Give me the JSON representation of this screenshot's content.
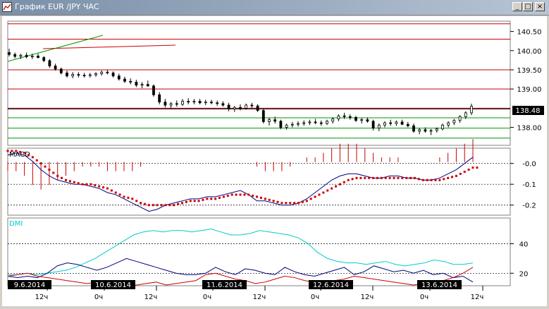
{
  "window": {
    "title": "График EUR /JPY ЧАС",
    "buttons": {
      "minimize": "_",
      "restore": "□",
      "close": "×"
    }
  },
  "chart_data": [
    {
      "type": "candlestick",
      "title": "",
      "price_axis_labels": [
        "140.50",
        "140.00",
        "139.50",
        "139.00",
        "138.00"
      ],
      "current_price_label": "138.48",
      "ylim": [
        137.55,
        140.75
      ],
      "ohlc": [
        [
          139.95,
          140.05,
          139.85,
          139.9
        ],
        [
          139.9,
          139.95,
          139.8,
          139.85
        ],
        [
          139.85,
          139.92,
          139.78,
          139.88
        ],
        [
          139.88,
          139.95,
          139.8,
          139.84
        ],
        [
          139.84,
          139.92,
          139.78,
          139.86
        ],
        [
          139.86,
          139.92,
          139.8,
          139.82
        ],
        [
          139.82,
          139.86,
          139.7,
          139.74
        ],
        [
          139.74,
          139.78,
          139.55,
          139.6
        ],
        [
          139.6,
          139.66,
          139.48,
          139.52
        ],
        [
          139.52,
          139.56,
          139.38,
          139.42
        ],
        [
          139.42,
          139.48,
          139.3,
          139.34
        ],
        [
          139.34,
          139.44,
          139.28,
          139.38
        ],
        [
          139.38,
          139.44,
          139.3,
          139.36
        ],
        [
          139.36,
          139.42,
          139.3,
          139.35
        ],
        [
          139.35,
          139.42,
          139.3,
          139.37
        ],
        [
          139.37,
          139.44,
          139.32,
          139.4
        ],
        [
          139.4,
          139.48,
          139.35,
          139.44
        ],
        [
          139.44,
          139.5,
          139.38,
          139.42
        ],
        [
          139.42,
          139.46,
          139.3,
          139.34
        ],
        [
          139.34,
          139.4,
          139.22,
          139.26
        ],
        [
          139.26,
          139.32,
          139.16,
          139.2
        ],
        [
          139.2,
          139.28,
          139.12,
          139.18
        ],
        [
          139.18,
          139.24,
          139.05,
          139.1
        ],
        [
          139.1,
          139.18,
          139.02,
          139.12
        ],
        [
          139.12,
          139.22,
          139.06,
          139.08
        ],
        [
          139.08,
          139.12,
          138.8,
          138.85
        ],
        [
          138.85,
          138.92,
          138.6,
          138.66
        ],
        [
          138.66,
          138.74,
          138.52,
          138.58
        ],
        [
          138.58,
          138.66,
          138.5,
          138.62
        ],
        [
          138.62,
          138.7,
          138.54,
          138.6
        ],
        [
          138.6,
          138.74,
          138.56,
          138.68
        ],
        [
          138.68,
          138.76,
          138.6,
          138.66
        ],
        [
          138.66,
          138.74,
          138.6,
          138.68
        ],
        [
          138.68,
          138.74,
          138.6,
          138.64
        ],
        [
          138.64,
          138.72,
          138.58,
          138.66
        ],
        [
          138.66,
          138.72,
          138.6,
          138.64
        ],
        [
          138.64,
          138.7,
          138.56,
          138.62
        ],
        [
          138.62,
          138.68,
          138.54,
          138.58
        ],
        [
          138.58,
          138.64,
          138.42,
          138.48
        ],
        [
          138.48,
          138.56,
          138.4,
          138.52
        ],
        [
          138.52,
          138.6,
          138.44,
          138.5
        ],
        [
          138.5,
          138.62,
          138.46,
          138.58
        ],
        [
          138.58,
          138.64,
          138.5,
          138.56
        ],
        [
          138.56,
          138.6,
          138.4,
          138.44
        ],
        [
          138.44,
          138.48,
          138.1,
          138.15
        ],
        [
          138.15,
          138.25,
          138.05,
          138.2
        ],
        [
          138.2,
          138.28,
          138.1,
          138.16
        ],
        [
          138.16,
          138.2,
          137.95,
          138.0
        ],
        [
          138.0,
          138.1,
          137.94,
          138.06
        ],
        [
          138.06,
          138.14,
          138.0,
          138.08
        ],
        [
          138.08,
          138.16,
          138.02,
          138.1
        ],
        [
          138.1,
          138.18,
          138.04,
          138.12
        ],
        [
          138.12,
          138.2,
          138.06,
          138.14
        ],
        [
          138.14,
          138.22,
          138.08,
          138.12
        ],
        [
          138.12,
          138.18,
          138.04,
          138.1
        ],
        [
          138.1,
          138.2,
          138.06,
          138.16
        ],
        [
          138.16,
          138.26,
          138.1,
          138.22
        ],
        [
          138.22,
          138.34,
          138.16,
          138.3
        ],
        [
          138.3,
          138.38,
          138.22,
          138.28
        ],
        [
          138.28,
          138.34,
          138.2,
          138.26
        ],
        [
          138.26,
          138.3,
          138.14,
          138.18
        ],
        [
          138.18,
          138.24,
          138.1,
          138.2
        ],
        [
          138.2,
          138.26,
          138.12,
          138.16
        ],
        [
          138.16,
          138.2,
          137.92,
          137.98
        ],
        [
          137.98,
          138.1,
          137.9,
          138.06
        ],
        [
          138.06,
          138.16,
          138.0,
          138.12
        ],
        [
          138.12,
          138.2,
          138.04,
          138.1
        ],
        [
          138.1,
          138.18,
          138.04,
          138.14
        ],
        [
          138.14,
          138.2,
          138.06,
          138.08
        ],
        [
          138.08,
          138.14,
          138.0,
          138.04
        ],
        [
          138.04,
          138.1,
          137.86,
          137.9
        ],
        [
          137.9,
          137.98,
          137.82,
          137.94
        ],
        [
          137.94,
          138.0,
          137.86,
          137.9
        ],
        [
          137.9,
          137.96,
          137.8,
          137.92
        ],
        [
          137.92,
          138.0,
          137.86,
          137.96
        ],
        [
          137.96,
          138.1,
          137.92,
          138.06
        ],
        [
          138.06,
          138.16,
          138.0,
          138.12
        ],
        [
          138.12,
          138.22,
          138.06,
          138.18
        ],
        [
          138.18,
          138.32,
          138.12,
          138.28
        ],
        [
          138.28,
          138.42,
          138.22,
          138.38
        ],
        [
          138.38,
          138.62,
          138.32,
          138.55
        ]
      ],
      "horizontal_levels": [
        {
          "value": 140.7,
          "color": "#cc0000"
        },
        {
          "value": 140.3,
          "color": "#cc0000"
        },
        {
          "value": 139.5,
          "color": "#cc0000"
        },
        {
          "value": 139.0,
          "color": "#cc0000"
        },
        {
          "value": 138.5,
          "color": "#cc0000"
        },
        {
          "value": 138.48,
          "color": "#000000"
        },
        {
          "value": 138.25,
          "color": "#009900"
        },
        {
          "value": 137.98,
          "color": "#009900"
        },
        {
          "value": 137.72,
          "color": "#009900"
        }
      ]
    },
    {
      "type": "line",
      "title": "MACD",
      "axis_labels": [
        "-0.0",
        "-0.1",
        "-0.2"
      ],
      "ylim": [
        -0.245,
        0.07
      ],
      "series": [
        {
          "name": "",
          "color": "#000080",
          "style": "line",
          "values": [
            0.04,
            0.05,
            0.04,
            0.01,
            -0.03,
            -0.06,
            -0.08,
            -0.09,
            -0.1,
            -0.1,
            -0.11,
            -0.12,
            -0.14,
            -0.15,
            -0.17,
            -0.19,
            -0.21,
            -0.23,
            -0.22,
            -0.2,
            -0.19,
            -0.18,
            -0.17,
            -0.17,
            -0.16,
            -0.16,
            -0.15,
            -0.14,
            -0.13,
            -0.15,
            -0.18,
            -0.18,
            -0.19,
            -0.2,
            -0.2,
            -0.19,
            -0.17,
            -0.14,
            -0.11,
            -0.08,
            -0.06,
            -0.05,
            -0.05,
            -0.06,
            -0.07,
            -0.07,
            -0.06,
            -0.06,
            -0.07,
            -0.07,
            -0.08,
            -0.08,
            -0.07,
            -0.05,
            -0.03,
            0.0,
            0.03
          ]
        },
        {
          "name": "",
          "color": "#cc0000",
          "style": "dots",
          "values": [
            0.06,
            0.06,
            0.05,
            0.03,
            0.0,
            -0.03,
            -0.06,
            -0.08,
            -0.09,
            -0.1,
            -0.1,
            -0.11,
            -0.12,
            -0.14,
            -0.16,
            -0.17,
            -0.19,
            -0.2,
            -0.2,
            -0.2,
            -0.2,
            -0.19,
            -0.18,
            -0.18,
            -0.17,
            -0.17,
            -0.16,
            -0.15,
            -0.15,
            -0.15,
            -0.16,
            -0.17,
            -0.18,
            -0.19,
            -0.19,
            -0.19,
            -0.18,
            -0.16,
            -0.14,
            -0.12,
            -0.1,
            -0.08,
            -0.07,
            -0.07,
            -0.07,
            -0.07,
            -0.07,
            -0.07,
            -0.07,
            -0.07,
            -0.08,
            -0.08,
            -0.08,
            -0.07,
            -0.06,
            -0.04,
            -0.02
          ]
        },
        {
          "name": "",
          "color": "#cc0000",
          "style": "histogram",
          "values": [
            -0.02,
            -0.02,
            -0.03,
            -0.05,
            -0.06,
            -0.05,
            -0.04,
            -0.03,
            -0.02,
            -0.01,
            -0.01,
            -0.01,
            -0.02,
            -0.02,
            -0.02,
            -0.02,
            -0.01,
            0.0,
            0.0,
            0.0,
            0.0,
            0.0,
            0.0,
            0.0,
            0.0,
            0.0,
            0.0,
            0.0,
            0.0,
            0.0,
            -0.01,
            -0.02,
            -0.02,
            -0.02,
            -0.01,
            0.0,
            0.01,
            0.01,
            0.02,
            0.03,
            0.04,
            0.04,
            0.04,
            0.03,
            0.02,
            0.01,
            0.01,
            0.01,
            0.0,
            0.0,
            0.0,
            0.0,
            0.01,
            0.02,
            0.03,
            0.04,
            0.05
          ]
        }
      ]
    },
    {
      "type": "line",
      "title": "DMI",
      "axis_labels": [
        "40",
        "20"
      ],
      "ylim": [
        12,
        57
      ],
      "series": [
        {
          "name": "",
          "color": "#00cccc",
          "values": [
            19,
            19,
            20,
            19,
            20,
            21,
            22,
            24,
            27,
            30,
            34,
            38,
            42,
            46,
            48,
            49,
            48,
            49,
            49,
            48,
            49,
            50,
            48,
            46,
            46,
            47,
            49,
            48,
            47,
            46,
            44,
            40,
            34,
            30,
            28,
            27,
            27,
            26,
            27,
            28,
            26,
            25,
            26,
            27,
            29,
            28,
            26,
            26,
            27
          ]
        },
        {
          "name": "",
          "color": "#000080",
          "values": [
            18,
            17,
            18,
            17,
            20,
            25,
            27,
            26,
            24,
            22,
            24,
            27,
            30,
            28,
            26,
            24,
            22,
            20,
            19,
            19,
            20,
            24,
            21,
            19,
            23,
            22,
            20,
            19,
            24,
            21,
            19,
            18,
            20,
            22,
            24,
            19,
            21,
            25,
            23,
            21,
            22,
            20,
            22,
            19,
            20,
            17,
            18,
            14
          ]
        },
        {
          "name": "",
          "color": "#cc0000",
          "values": [
            18,
            19,
            20,
            18,
            17,
            16,
            15,
            14,
            13,
            14,
            12,
            12,
            11,
            12,
            13,
            14,
            12,
            13,
            14,
            15,
            19,
            20,
            18,
            16,
            15,
            13,
            14,
            16,
            18,
            17,
            15,
            14,
            13,
            15,
            16,
            18,
            17,
            16,
            15,
            14,
            13,
            12,
            13,
            14,
            15,
            17,
            20,
            24
          ]
        }
      ]
    }
  ],
  "time_axis": {
    "dates": [
      "9.6.2014",
      "10.6.2014",
      "11.6.2014",
      "12.6.2014",
      "13.6.2014"
    ],
    "ticks": [
      "12ч",
      "0ч",
      "12ч",
      "0ч",
      "12ч",
      "0ч",
      "12ч",
      "0ч",
      "12ч"
    ]
  }
}
